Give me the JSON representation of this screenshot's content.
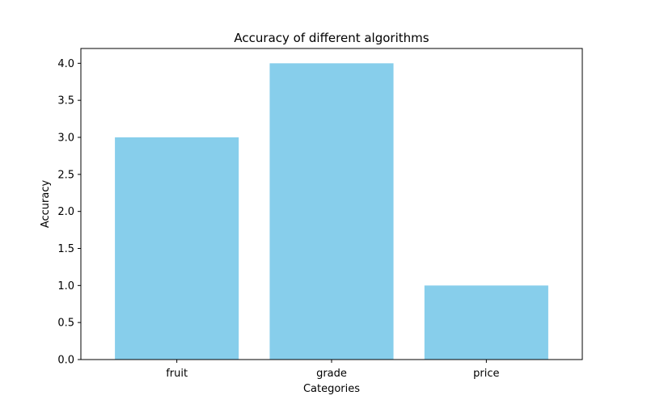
{
  "chart_data": {
    "type": "bar",
    "title": "Accuracy of different algorithms",
    "xlabel": "Categories",
    "ylabel": "Accuracy",
    "categories": [
      "fruit",
      "grade",
      "price"
    ],
    "values": [
      3,
      4,
      1
    ],
    "ylim": [
      0,
      4.2
    ],
    "yticks": [
      "0.0",
      "0.5",
      "1.0",
      "1.5",
      "2.0",
      "2.5",
      "3.0",
      "3.5",
      "4.0"
    ],
    "bar_color": "#87ceeb",
    "grid": false,
    "legend": "none"
  }
}
